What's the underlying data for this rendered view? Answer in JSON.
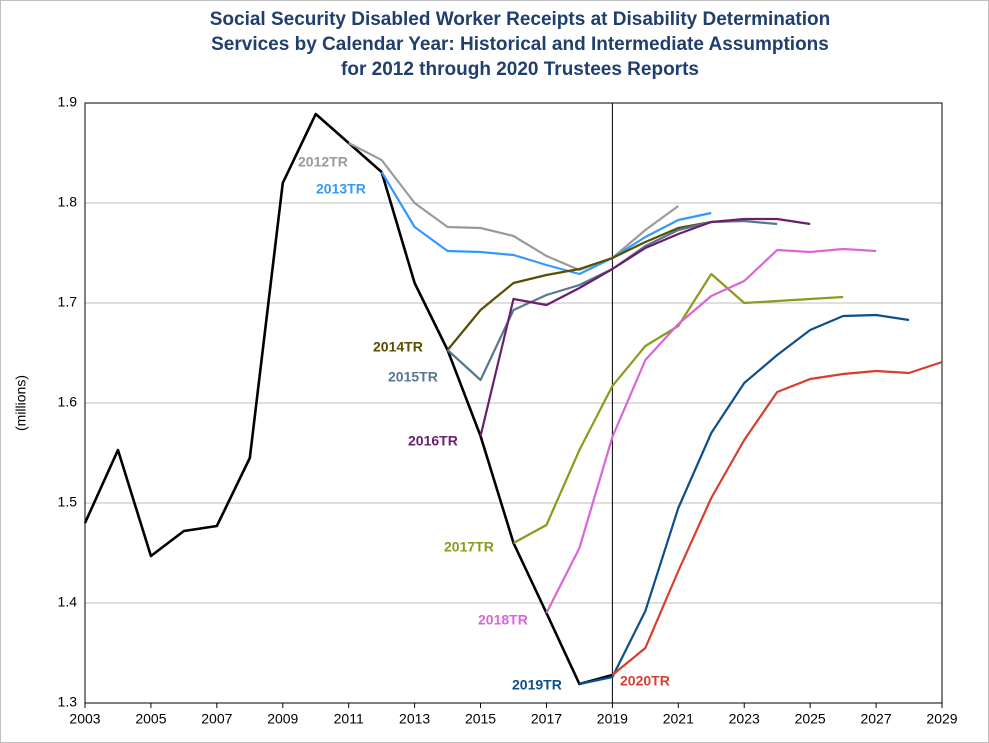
{
  "chart_data": {
    "type": "line",
    "title": [
      "Social Security Disabled Worker Receipts at Disability Determination",
      "Services by Calendar Year: Historical and Intermediate Assumptions",
      "for 2012 through 2020 Trustees Reports"
    ],
    "y_label": "(millions)",
    "xlim": [
      2003,
      2029
    ],
    "xticks": [
      2003,
      2005,
      2007,
      2009,
      2011,
      2013,
      2015,
      2017,
      2019,
      2021,
      2023,
      2025,
      2027,
      2029
    ],
    "ylim": [
      1.3,
      1.9
    ],
    "yticks": [
      1.3,
      1.4,
      1.5,
      1.6,
      1.7,
      1.8,
      1.9
    ],
    "grid": true,
    "vline": 2019,
    "vline_color": "#000000",
    "series": [
      {
        "color": "#000000",
        "x": [
          2003,
          2004,
          2005,
          2006,
          2007,
          2008,
          2009,
          2010,
          2011,
          2012,
          2013,
          2014,
          2015,
          2016,
          2017,
          2018,
          2019
        ],
        "values": [
          1.48,
          1.553,
          1.447,
          1.472,
          1.477,
          1.545,
          1.82,
          1.889,
          1.86,
          1.831,
          1.72,
          1.653,
          1.567,
          1.46,
          1.39,
          1.319,
          1.328
        ]
      },
      {
        "name": "2012TR",
        "color": "#9a9a9a",
        "x": [
          2011,
          2012,
          2013,
          2014,
          2015,
          2016,
          2017,
          2018,
          2019,
          2020,
          2021
        ],
        "values": [
          1.86,
          1.843,
          1.8,
          1.776,
          1.775,
          1.767,
          1.747,
          1.733,
          1.745,
          1.773,
          1.797
        ]
      },
      {
        "name": "2013TR",
        "color": "#3399ff",
        "x": [
          2012,
          2013,
          2014,
          2015,
          2016,
          2017,
          2018,
          2019,
          2020,
          2021,
          2022
        ],
        "values": [
          1.831,
          1.776,
          1.752,
          1.751,
          1.748,
          1.738,
          1.729,
          1.745,
          1.766,
          1.783,
          1.79
        ]
      },
      {
        "name": "2014TR",
        "color": "#5a4d00",
        "x": [
          2014,
          2015,
          2016,
          2017,
          2018,
          2019,
          2020,
          2021,
          2022,
          2023
        ],
        "values": [
          1.653,
          1.693,
          1.72,
          1.728,
          1.734,
          1.745,
          1.761,
          1.775,
          1.781,
          1.783
        ]
      },
      {
        "name": "2015TR",
        "color": "#56788e",
        "x": [
          2014,
          2015,
          2016,
          2017,
          2018,
          2019,
          2020,
          2021,
          2022,
          2023,
          2024
        ],
        "values": [
          1.653,
          1.623,
          1.693,
          1.708,
          1.718,
          1.734,
          1.757,
          1.773,
          1.781,
          1.782,
          1.779
        ]
      },
      {
        "name": "2016TR",
        "color": "#6b1f6b",
        "x": [
          2015,
          2016,
          2017,
          2018,
          2019,
          2020,
          2021,
          2022,
          2023,
          2024,
          2025
        ],
        "values": [
          1.567,
          1.704,
          1.698,
          1.715,
          1.734,
          1.755,
          1.769,
          1.781,
          1.784,
          1.784,
          1.779
        ]
      },
      {
        "name": "2017TR",
        "color": "#8c9a1e",
        "x": [
          2016,
          2017,
          2018,
          2019,
          2020,
          2021,
          2022,
          2023,
          2024,
          2025,
          2026
        ],
        "values": [
          1.46,
          1.478,
          1.553,
          1.617,
          1.657,
          1.677,
          1.729,
          1.7,
          1.702,
          1.704,
          1.706
        ]
      },
      {
        "name": "2018TR",
        "color": "#d966d9",
        "x": [
          2017,
          2018,
          2019,
          2020,
          2021,
          2022,
          2023,
          2024,
          2025,
          2026,
          2027
        ],
        "values": [
          1.39,
          1.455,
          1.566,
          1.643,
          1.679,
          1.707,
          1.722,
          1.753,
          1.751,
          1.754,
          1.752
        ]
      },
      {
        "name": "2019TR",
        "color": "#0d4f8b",
        "x": [
          2018,
          2019,
          2020,
          2021,
          2022,
          2023,
          2024,
          2025,
          2026,
          2027,
          2028
        ],
        "values": [
          1.319,
          1.326,
          1.392,
          1.495,
          1.57,
          1.62,
          1.648,
          1.673,
          1.687,
          1.688,
          1.683
        ]
      },
      {
        "name": "2020TR",
        "color": "#d43f2e",
        "x": [
          2019,
          2020,
          2021,
          2022,
          2023,
          2024,
          2025,
          2026,
          2027,
          2028,
          2029
        ],
        "values": [
          1.328,
          1.355,
          1.432,
          1.505,
          1.563,
          1.611,
          1.624,
          1.629,
          1.632,
          1.63,
          1.641
        ]
      }
    ]
  }
}
